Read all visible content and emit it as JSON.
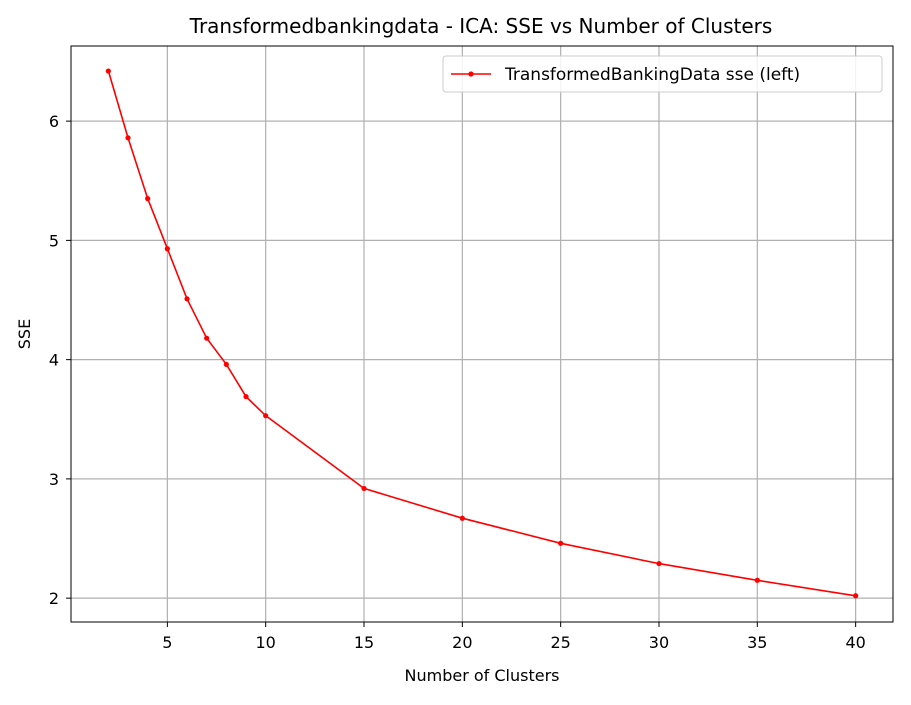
{
  "chart_data": {
    "type": "line",
    "title": "Transformedbankingdata - ICA: SSE vs Number of Clusters",
    "xlabel": "Number of Clusters",
    "ylabel": "SSE",
    "xlim": [
      0.1,
      41.9
    ],
    "ylim": [
      1.8,
      6.63
    ],
    "xticks": [
      5,
      10,
      15,
      20,
      25,
      30,
      35,
      40
    ],
    "yticks": [
      2,
      3,
      4,
      5,
      6
    ],
    "grid": true,
    "legend_position": "top-right",
    "series": [
      {
        "name": "TransformedBankingData sse (left)",
        "color": "#ff0000",
        "marker": "dot",
        "x": [
          2,
          3,
          4,
          5,
          6,
          7,
          8,
          9,
          10,
          15,
          20,
          25,
          30,
          35,
          40
        ],
        "y": [
          6.42,
          5.86,
          5.35,
          4.93,
          4.51,
          4.18,
          3.96,
          3.69,
          3.53,
          2.92,
          2.67,
          2.46,
          2.29,
          2.15,
          2.02
        ]
      }
    ]
  }
}
